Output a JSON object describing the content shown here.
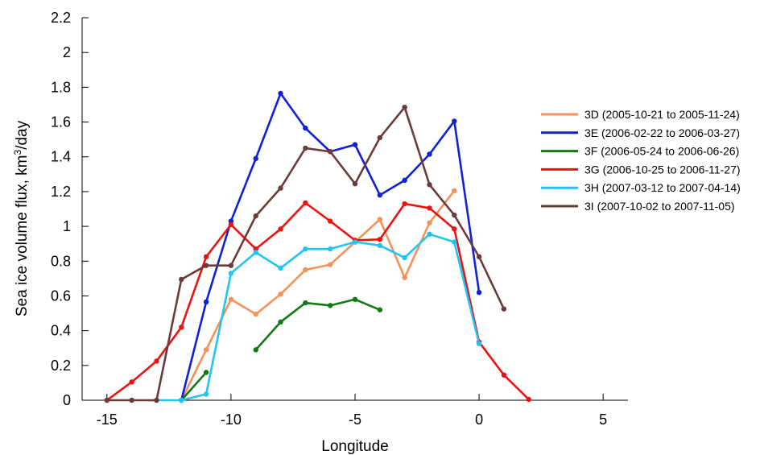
{
  "chart_data": {
    "type": "line",
    "title": "",
    "xlabel": "Longitude",
    "ylabel": "Sea ice volume flux, km³/day",
    "xlim": [
      -16,
      6
    ],
    "ylim": [
      0,
      2.2
    ],
    "xticks": [
      -15,
      -10,
      -5,
      0,
      5
    ],
    "yticks": [
      0,
      0.2,
      0.4,
      0.6,
      0.8,
      1,
      1.2,
      1.4,
      1.6,
      1.8,
      2,
      2.2
    ],
    "xtick_labels": [
      "-15",
      "-10",
      "-5",
      "0",
      "5"
    ],
    "ytick_labels": [
      "0",
      "0.2",
      "0.4",
      "0.6",
      "0.8",
      "1",
      "1.2",
      "1.4",
      "1.6",
      "1.8",
      "2",
      "2.2"
    ],
    "grid": false,
    "legend_position": "right",
    "series": [
      {
        "name": "3D (2005-10-21 to 2005-11-24)",
        "color": "#f4925a",
        "x": [
          -12,
          -11,
          -10,
          -9,
          -8,
          -7,
          -6,
          -5,
          -4,
          -3,
          -2,
          -1
        ],
        "y": [
          0.0,
          0.29,
          0.58,
          0.495,
          0.61,
          0.75,
          0.78,
          0.91,
          1.04,
          0.705,
          1.02,
          1.205
        ]
      },
      {
        "name": "3E (2006-02-22 to 2006-03-27)",
        "color": "#1020d8",
        "x": [
          -12,
          -11,
          -10,
          -9,
          -8,
          -7,
          -6,
          -5,
          -4,
          -3,
          -2,
          -1,
          0
        ],
        "y": [
          0.0,
          0.565,
          1.03,
          1.39,
          1.765,
          1.565,
          1.43,
          1.47,
          1.18,
          1.265,
          1.415,
          1.605,
          0.62
        ]
      },
      {
        "name": "3F (2006-05-24 to 2006-06-26)",
        "color": "#127a12",
        "segments": [
          {
            "x": [
              -12,
              -11
            ],
            "y": [
              0.0,
              0.16
            ]
          },
          {
            "x": [
              -9,
              -8,
              -7,
              -6,
              -5,
              -4
            ],
            "y": [
              0.29,
              0.45,
              0.56,
              0.545,
              0.58,
              0.52
            ]
          }
        ]
      },
      {
        "name": "3G (2006-10-25 to 2006-11-27)",
        "color": "#ee1111",
        "x": [
          -15,
          -14,
          -13,
          -12,
          -11,
          -10,
          -9,
          -8,
          -7,
          -6,
          -5,
          -4,
          -3,
          -2,
          -1,
          0,
          1,
          2
        ],
        "y": [
          0.0,
          0.105,
          0.225,
          0.42,
          0.825,
          1.01,
          0.87,
          0.985,
          1.135,
          1.03,
          0.92,
          0.925,
          1.13,
          1.105,
          0.985,
          0.335,
          0.145,
          0.005
        ]
      },
      {
        "name": "3H (2007-03-12 to 2007-04-14)",
        "color": "#22c5f0",
        "x": [
          -13,
          -12,
          -11,
          -10,
          -9,
          -8,
          -7,
          -6,
          -5,
          -4,
          -3,
          -2,
          -1,
          0
        ],
        "y": [
          0.0,
          0.0,
          0.035,
          0.73,
          0.85,
          0.76,
          0.87,
          0.87,
          0.91,
          0.89,
          0.82,
          0.955,
          0.91,
          0.325
        ]
      },
      {
        "name": "3I (2007-10-02 to 2007-11-05)",
        "color": "#6a3b38",
        "x": [
          -15,
          -14,
          -13,
          -12,
          -11,
          -10,
          -9,
          -8,
          -7,
          -6,
          -5,
          -4,
          -3,
          -2,
          -1,
          0,
          1
        ],
        "y": [
          0.0,
          0.0,
          0.0,
          0.695,
          0.775,
          0.775,
          1.06,
          1.22,
          1.45,
          1.43,
          1.245,
          1.51,
          1.685,
          1.24,
          1.065,
          0.825,
          0.525
        ]
      }
    ]
  }
}
